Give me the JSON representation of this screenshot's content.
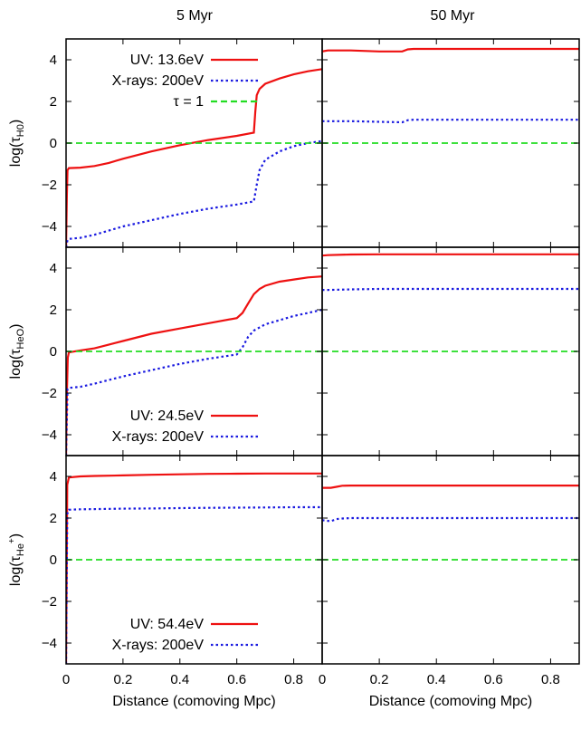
{
  "figure": {
    "column_titles": [
      "5 Myr",
      "50 Myr"
    ],
    "xlabel": "Distance (comoving Mpc)",
    "row_ylabels": [
      {
        "prefix": "log(",
        "tau": "τ",
        "sub": "H0",
        "sup": "",
        "suffix": ")"
      },
      {
        "prefix": "log(",
        "tau": "τ",
        "sub": "HeO",
        "sup": "",
        "suffix": ")"
      },
      {
        "prefix": "log(",
        "tau": "τ",
        "sub": "He",
        "sup": "+",
        "suffix": ")"
      }
    ],
    "colors": {
      "uv": "#ee1111",
      "xray": "#1a1ae0",
      "tau1": "#22dd22"
    }
  },
  "chart_data": [
    {
      "type": "line",
      "panel": "row1-left",
      "title": "5 Myr",
      "ylabel": "log(τH0)",
      "xlim": [
        0,
        0.9
      ],
      "ylim": [
        -5,
        5
      ],
      "xticks": [
        0,
        0.2,
        0.4,
        0.6,
        0.8
      ],
      "yticks": [
        -4,
        -2,
        0,
        2,
        4
      ],
      "legend": {
        "placement": "top-right",
        "entries": [
          "UV: 13.6eV",
          "X-rays: 200eV",
          "τ = 1"
        ]
      },
      "series": [
        {
          "name": "UV: 13.6eV",
          "role": "uv",
          "style": "solid",
          "x": [
            0,
            0.003,
            0.005,
            0.01,
            0.05,
            0.1,
            0.15,
            0.2,
            0.3,
            0.4,
            0.5,
            0.6,
            0.66,
            0.665,
            0.67,
            0.68,
            0.7,
            0.75,
            0.8,
            0.85,
            0.9
          ],
          "y": [
            -5,
            -2.5,
            -1.3,
            -1.2,
            -1.18,
            -1.1,
            -0.95,
            -0.75,
            -0.4,
            -0.1,
            0.15,
            0.35,
            0.5,
            1.5,
            2.3,
            2.6,
            2.85,
            3.1,
            3.3,
            3.45,
            3.55
          ]
        },
        {
          "name": "X-rays: 200eV",
          "role": "xray",
          "style": "dotted",
          "x": [
            0,
            0.005,
            0.01,
            0.05,
            0.1,
            0.2,
            0.3,
            0.4,
            0.5,
            0.6,
            0.66,
            0.67,
            0.68,
            0.7,
            0.75,
            0.8,
            0.85,
            0.9
          ],
          "y": [
            -5,
            -4.65,
            -4.6,
            -4.55,
            -4.4,
            -4.0,
            -3.7,
            -3.4,
            -3.15,
            -2.95,
            -2.8,
            -2.0,
            -1.3,
            -0.8,
            -0.4,
            -0.15,
            0.0,
            0.1
          ]
        },
        {
          "name": "τ = 1",
          "role": "tau1",
          "style": "dashed",
          "x": [
            0,
            0.9
          ],
          "y": [
            0,
            0
          ]
        }
      ]
    },
    {
      "type": "line",
      "panel": "row1-right",
      "title": "50 Myr",
      "xlim": [
        0,
        0.9
      ],
      "ylim": [
        -5,
        5
      ],
      "xticks": [
        0,
        0.2,
        0.4,
        0.6,
        0.8
      ],
      "yticks": [
        -4,
        -2,
        0,
        2,
        4
      ],
      "series": [
        {
          "role": "uv",
          "style": "solid",
          "x": [
            0,
            0.02,
            0.1,
            0.2,
            0.28,
            0.3,
            0.32,
            0.4,
            0.6,
            0.8,
            0.9
          ],
          "y": [
            4.4,
            4.45,
            4.45,
            4.4,
            4.4,
            4.5,
            4.52,
            4.52,
            4.52,
            4.52,
            4.52
          ]
        },
        {
          "role": "xray",
          "style": "dotted",
          "x": [
            0,
            0.02,
            0.1,
            0.2,
            0.28,
            0.3,
            0.32,
            0.4,
            0.6,
            0.8,
            0.9
          ],
          "y": [
            1.05,
            1.05,
            1.05,
            1.02,
            1.0,
            1.1,
            1.12,
            1.12,
            1.12,
            1.12,
            1.12
          ]
        },
        {
          "role": "tau1",
          "style": "dashed",
          "x": [
            0,
            0.9
          ],
          "y": [
            0,
            0
          ]
        }
      ]
    },
    {
      "type": "line",
      "panel": "row2-left",
      "ylabel": "log(τHeO)",
      "xlim": [
        0,
        0.9
      ],
      "ylim": [
        -5,
        5
      ],
      "xticks": [
        0,
        0.2,
        0.4,
        0.6,
        0.8
      ],
      "yticks": [
        -4,
        -2,
        0,
        2,
        4
      ],
      "legend": {
        "placement": "bottom-right",
        "entries": [
          "UV: 24.5eV",
          "X-rays: 200eV"
        ]
      },
      "series": [
        {
          "name": "UV: 24.5eV",
          "role": "uv",
          "style": "solid",
          "x": [
            0,
            0.003,
            0.006,
            0.01,
            0.05,
            0.1,
            0.2,
            0.3,
            0.4,
            0.5,
            0.6,
            0.62,
            0.64,
            0.66,
            0.68,
            0.7,
            0.75,
            0.8,
            0.85,
            0.9
          ],
          "y": [
            -5,
            -2.0,
            -0.3,
            -0.05,
            0.05,
            0.15,
            0.5,
            0.85,
            1.1,
            1.35,
            1.6,
            1.85,
            2.3,
            2.75,
            3.0,
            3.15,
            3.35,
            3.45,
            3.55,
            3.6
          ]
        },
        {
          "name": "X-rays: 200eV",
          "role": "xray",
          "style": "dotted",
          "x": [
            0,
            0.005,
            0.01,
            0.05,
            0.1,
            0.2,
            0.3,
            0.4,
            0.5,
            0.6,
            0.62,
            0.64,
            0.66,
            0.7,
            0.75,
            0.8,
            0.85,
            0.9
          ],
          "y": [
            -5,
            -1.8,
            -1.75,
            -1.7,
            -1.55,
            -1.2,
            -0.9,
            -0.6,
            -0.35,
            -0.15,
            0.2,
            0.7,
            1.0,
            1.3,
            1.5,
            1.7,
            1.85,
            2.0
          ]
        },
        {
          "role": "tau1",
          "style": "dashed",
          "x": [
            0,
            0.9
          ],
          "y": [
            0,
            0
          ]
        }
      ]
    },
    {
      "type": "line",
      "panel": "row2-right",
      "xlim": [
        0,
        0.9
      ],
      "ylim": [
        -5,
        5
      ],
      "xticks": [
        0,
        0.2,
        0.4,
        0.6,
        0.8
      ],
      "yticks": [
        -4,
        -2,
        0,
        2,
        4
      ],
      "series": [
        {
          "role": "uv",
          "style": "solid",
          "x": [
            0,
            0.02,
            0.1,
            0.2,
            0.3,
            0.5,
            0.7,
            0.9
          ],
          "y": [
            4.6,
            4.62,
            4.65,
            4.66,
            4.66,
            4.66,
            4.66,
            4.66
          ]
        },
        {
          "role": "xray",
          "style": "dotted",
          "x": [
            0,
            0.02,
            0.1,
            0.2,
            0.3,
            0.5,
            0.7,
            0.9
          ],
          "y": [
            2.95,
            2.95,
            2.98,
            3.0,
            3.0,
            3.0,
            3.0,
            3.0
          ]
        },
        {
          "role": "tau1",
          "style": "dashed",
          "x": [
            0,
            0.9
          ],
          "y": [
            0,
            0
          ]
        }
      ]
    },
    {
      "type": "line",
      "panel": "row3-left",
      "ylabel": "log(τHe+)",
      "xlabel": "Distance (comoving Mpc)",
      "xlim": [
        0,
        0.9
      ],
      "ylim": [
        -5,
        5
      ],
      "xticks": [
        0,
        0.2,
        0.4,
        0.6,
        0.8
      ],
      "yticks": [
        -4,
        -2,
        0,
        2,
        4
      ],
      "legend": {
        "placement": "bottom-right",
        "entries": [
          "UV: 54.4eV",
          "X-rays: 200eV"
        ]
      },
      "series": [
        {
          "name": "UV: 54.4eV",
          "role": "uv",
          "style": "solid",
          "x": [
            0,
            0.004,
            0.01,
            0.05,
            0.1,
            0.2,
            0.3,
            0.4,
            0.5,
            0.6,
            0.7,
            0.8,
            0.9
          ],
          "y": [
            -5,
            3.6,
            3.95,
            4.0,
            4.02,
            4.05,
            4.08,
            4.1,
            4.12,
            4.13,
            4.14,
            4.14,
            4.14
          ]
        },
        {
          "name": "X-rays: 200eV",
          "role": "xray",
          "style": "dotted",
          "x": [
            0,
            0.004,
            0.01,
            0.05,
            0.1,
            0.2,
            0.3,
            0.4,
            0.5,
            0.6,
            0.7,
            0.8,
            0.9
          ],
          "y": [
            -5,
            2.2,
            2.4,
            2.42,
            2.43,
            2.45,
            2.46,
            2.48,
            2.49,
            2.5,
            2.51,
            2.52,
            2.52
          ]
        },
        {
          "role": "tau1",
          "style": "dashed",
          "x": [
            0,
            0.9
          ],
          "y": [
            0,
            0
          ]
        }
      ]
    },
    {
      "type": "line",
      "panel": "row3-right",
      "xlabel": "Distance (comoving Mpc)",
      "xlim": [
        0,
        0.9
      ],
      "ylim": [
        -5,
        5
      ],
      "xticks": [
        0,
        0.2,
        0.4,
        0.6,
        0.8
      ],
      "yticks": [
        -4,
        -2,
        0,
        2,
        4
      ],
      "series": [
        {
          "role": "uv",
          "style": "solid",
          "x": [
            0,
            0.03,
            0.05,
            0.07,
            0.1,
            0.2,
            0.4,
            0.6,
            0.8,
            0.9
          ],
          "y": [
            3.45,
            3.45,
            3.5,
            3.55,
            3.56,
            3.56,
            3.56,
            3.56,
            3.56,
            3.56
          ]
        },
        {
          "role": "xray",
          "style": "dotted",
          "x": [
            0,
            0.03,
            0.05,
            0.07,
            0.1,
            0.2,
            0.4,
            0.6,
            0.8,
            0.9
          ],
          "y": [
            1.9,
            1.85,
            1.95,
            1.98,
            2.0,
            2.0,
            2.0,
            2.0,
            2.0,
            2.0
          ]
        },
        {
          "role": "tau1",
          "style": "dashed",
          "x": [
            0,
            0.9
          ],
          "y": [
            0,
            0
          ]
        }
      ]
    }
  ]
}
